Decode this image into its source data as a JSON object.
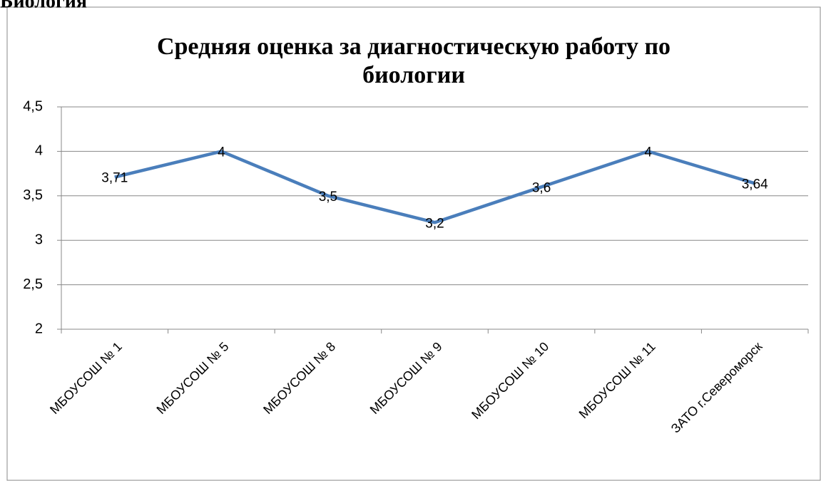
{
  "page_heading": "Биология",
  "chart_data": {
    "type": "line",
    "title": "Средняя оценка за диагностическую работу по биологии",
    "categories": [
      "МБОУСОШ № 1",
      "МБОУСОШ № 5",
      "МБОУСОШ № 8",
      "МБОУСОШ № 9",
      "МБОУСОШ № 10",
      "МБОУСОШ № 11",
      "ЗАТО г.Североморск"
    ],
    "values": [
      3.71,
      4,
      3.5,
      3.2,
      3.6,
      4,
      3.64
    ],
    "value_labels": [
      "3,71",
      "4",
      "3,5",
      "3,2",
      "3,6",
      "4",
      "3,64"
    ],
    "color": "#4a7ebb",
    "ylim": [
      2,
      4.5
    ],
    "yticks": [
      2,
      {
        "value": 2.5,
        "label": "2,5"
      },
      3,
      {
        "value": 3.5,
        "label": "3,5"
      },
      4,
      {
        "value": 4.5,
        "label": "4,5"
      }
    ],
    "grid": true
  }
}
